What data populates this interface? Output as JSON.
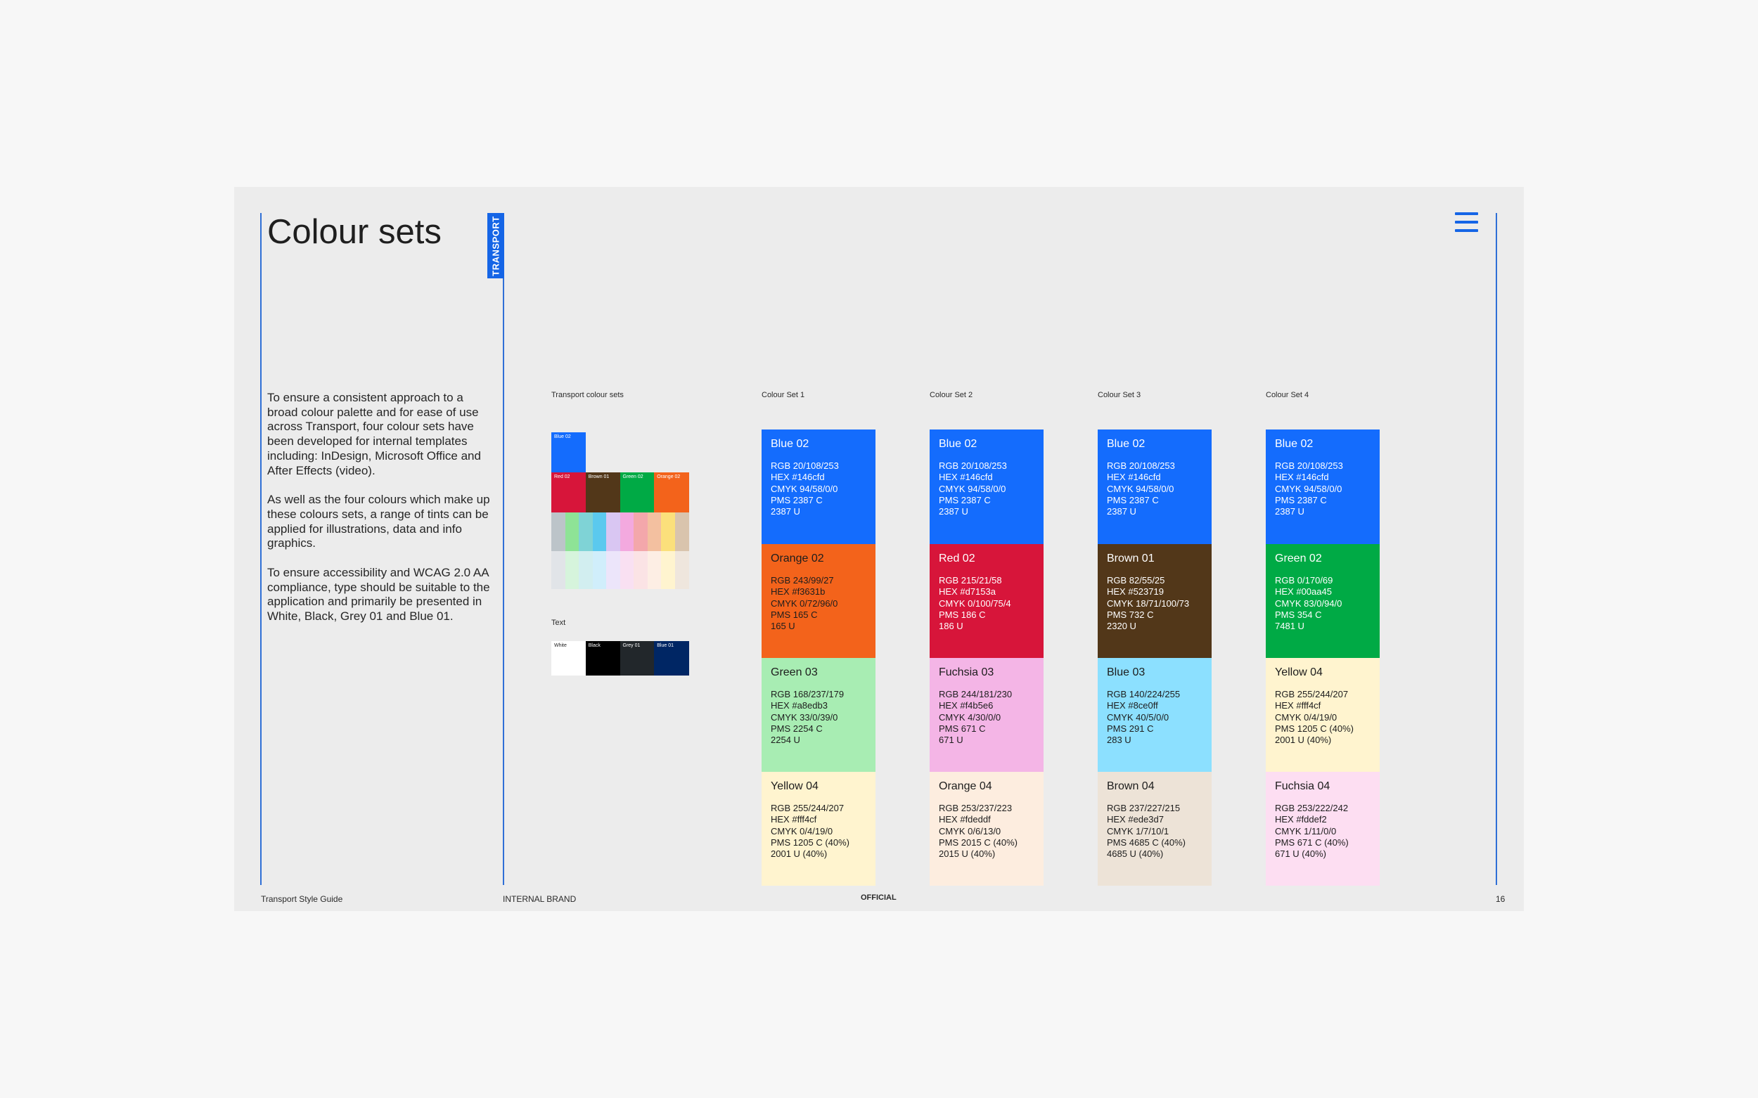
{
  "page": {
    "title": "Colour sets",
    "tag": "TRANSPORT",
    "intro": [
      "To ensure a consistent approach to a broad colour palette and for ease of use across Transport, four colour sets have been developed for internal templates including: InDesign, Microsoft Office and After Effects (video).",
      "As well as the four colours which make up these colours sets, a range of tints can be applied for illustrations, data and info graphics.",
      "To ensure accessibility and WCAG 2.0 AA compliance, type should be suitable to the application and primarily be presented in White, Black, Grey 01 and Blue 01."
    ]
  },
  "overview": {
    "label": "Transport colour sets",
    "primary": {
      "name": "Blue 02",
      "color": "#146cfd"
    },
    "row": [
      {
        "name": "Red 02",
        "color": "#d7153a"
      },
      {
        "name": "Brown 01",
        "color": "#523719"
      },
      {
        "name": "Green 02",
        "color": "#00aa45"
      },
      {
        "name": "Orange 02",
        "color": "#f3631b"
      }
    ],
    "tints_mid": [
      "#bcc4c9",
      "#8ee396",
      "#7fd3d6",
      "#5bc9ee",
      "#d9c6f2",
      "#f3a9df",
      "#f3a7ab",
      "#f3c0a0",
      "#fbe07b",
      "#d9c4ad"
    ],
    "tints_light": [
      "#e1e4e8",
      "#d6f4dc",
      "#d2eef0",
      "#d0eefb",
      "#ece5fa",
      "#f9e0f2",
      "#fbe3e5",
      "#fdeee4",
      "#fff4cf",
      "#efe6dd"
    ],
    "text_label": "Text",
    "text_colours": [
      {
        "name": "White",
        "color": "#ffffff",
        "ink": "#1d1d1d"
      },
      {
        "name": "Black",
        "color": "#000000",
        "ink": "#ffffff"
      },
      {
        "name": "Grey 01",
        "color": "#22272b",
        "ink": "#ffffff"
      },
      {
        "name": "Blue 01",
        "color": "#002664",
        "ink": "#ffffff"
      }
    ]
  },
  "sets": [
    {
      "title": "Colour Set 1",
      "swatches": [
        {
          "name": "Blue 02",
          "color": "#146cfd",
          "ink": "#ffffff",
          "specs": [
            "RGB 20/108/253",
            "HEX #146cfd",
            "CMYK 94/58/0/0",
            "PMS 2387 C",
            "2387 U"
          ]
        },
        {
          "name": "Orange 02",
          "color": "#f3631b",
          "ink": "#1d1d1d",
          "specs": [
            "RGB 243/99/27",
            "HEX #f3631b",
            "CMYK 0/72/96/0",
            "PMS 165 C",
            "165 U"
          ]
        },
        {
          "name": "Green 03",
          "color": "#a8edb3",
          "ink": "#1d1d1d",
          "specs": [
            "RGB 168/237/179",
            "HEX #a8edb3",
            "CMYK 33/0/39/0",
            "PMS 2254 C",
            "2254 U"
          ]
        },
        {
          "name": "Yellow 04",
          "color": "#fff4cf",
          "ink": "#1d1d1d",
          "specs": [
            "RGB 255/244/207",
            "HEX #fff4cf",
            "CMYK 0/4/19/0",
            "PMS 1205 C (40%)",
            "2001 U (40%)"
          ]
        }
      ]
    },
    {
      "title": "Colour Set 2",
      "swatches": [
        {
          "name": "Blue 02",
          "color": "#146cfd",
          "ink": "#ffffff",
          "specs": [
            "RGB 20/108/253",
            "HEX #146cfd",
            "CMYK 94/58/0/0",
            "PMS 2387 C",
            "2387 U"
          ]
        },
        {
          "name": "Red 02",
          "color": "#d7153a",
          "ink": "#ffffff",
          "specs": [
            "RGB 215/21/58",
            "HEX #d7153a",
            "CMYK 0/100/75/4",
            "PMS 186 C",
            "186 U"
          ]
        },
        {
          "name": "Fuchsia 03",
          "color": "#f4b5e6",
          "ink": "#1d1d1d",
          "specs": [
            "RGB 244/181/230",
            "HEX #f4b5e6",
            "CMYK 4/30/0/0",
            "PMS 671 C",
            "671 U"
          ]
        },
        {
          "name": "Orange 04",
          "color": "#fdeddf",
          "ink": "#1d1d1d",
          "specs": [
            "RGB 253/237/223",
            "HEX #fdeddf",
            "CMYK 0/6/13/0",
            "PMS 2015 C (40%)",
            "2015 U (40%)"
          ]
        }
      ]
    },
    {
      "title": "Colour Set 3",
      "swatches": [
        {
          "name": "Blue 02",
          "color": "#146cfd",
          "ink": "#ffffff",
          "specs": [
            "RGB 20/108/253",
            "HEX #146cfd",
            "CMYK 94/58/0/0",
            "PMS 2387 C",
            "2387 U"
          ]
        },
        {
          "name": "Brown 01",
          "color": "#523719",
          "ink": "#ffffff",
          "specs": [
            "RGB 82/55/25",
            "HEX #523719",
            "CMYK 18/71/100/73",
            "PMS 732 C",
            "2320 U"
          ]
        },
        {
          "name": "Blue 03",
          "color": "#8ce0ff",
          "ink": "#1d1d1d",
          "specs": [
            "RGB 140/224/255",
            "HEX #8ce0ff",
            "CMYK 40/5/0/0",
            "PMS 291 C",
            "283 U"
          ]
        },
        {
          "name": "Brown 04",
          "color": "#ede3d7",
          "ink": "#1d1d1d",
          "specs": [
            "RGB 237/227/215",
            "HEX #ede3d7",
            "CMYK 1/7/10/1",
            "PMS 4685 C (40%)",
            "4685 U (40%)"
          ]
        }
      ]
    },
    {
      "title": "Colour Set 4",
      "swatches": [
        {
          "name": "Blue 02",
          "color": "#146cfd",
          "ink": "#ffffff",
          "specs": [
            "RGB 20/108/253",
            "HEX #146cfd",
            "CMYK 94/58/0/0",
            "PMS 2387 C",
            "2387 U"
          ]
        },
        {
          "name": "Green 02",
          "color": "#00aa45",
          "ink": "#ffffff",
          "specs": [
            "RGB 0/170/69",
            "HEX #00aa45",
            "CMYK 83/0/94/0",
            "PMS 354 C",
            "7481 U"
          ]
        },
        {
          "name": "Yellow 04",
          "color": "#fff4cf",
          "ink": "#1d1d1d",
          "specs": [
            "RGB 255/244/207",
            "HEX #fff4cf",
            "CMYK 0/4/19/0",
            "PMS 1205 C (40%)",
            "2001 U (40%)"
          ]
        },
        {
          "name": "Fuchsia 04",
          "color": "#fddef2",
          "ink": "#1d1d1d",
          "specs": [
            "RGB 253/222/242",
            "HEX #fddef2",
            "CMYK 1/11/0/0",
            "PMS 671 C (40%)",
            "671 U (40%)"
          ]
        }
      ]
    }
  ],
  "footer": {
    "left": "Transport Style Guide",
    "section": "INTERNAL BRAND",
    "classification": "OFFICIAL",
    "page_number": "16"
  }
}
